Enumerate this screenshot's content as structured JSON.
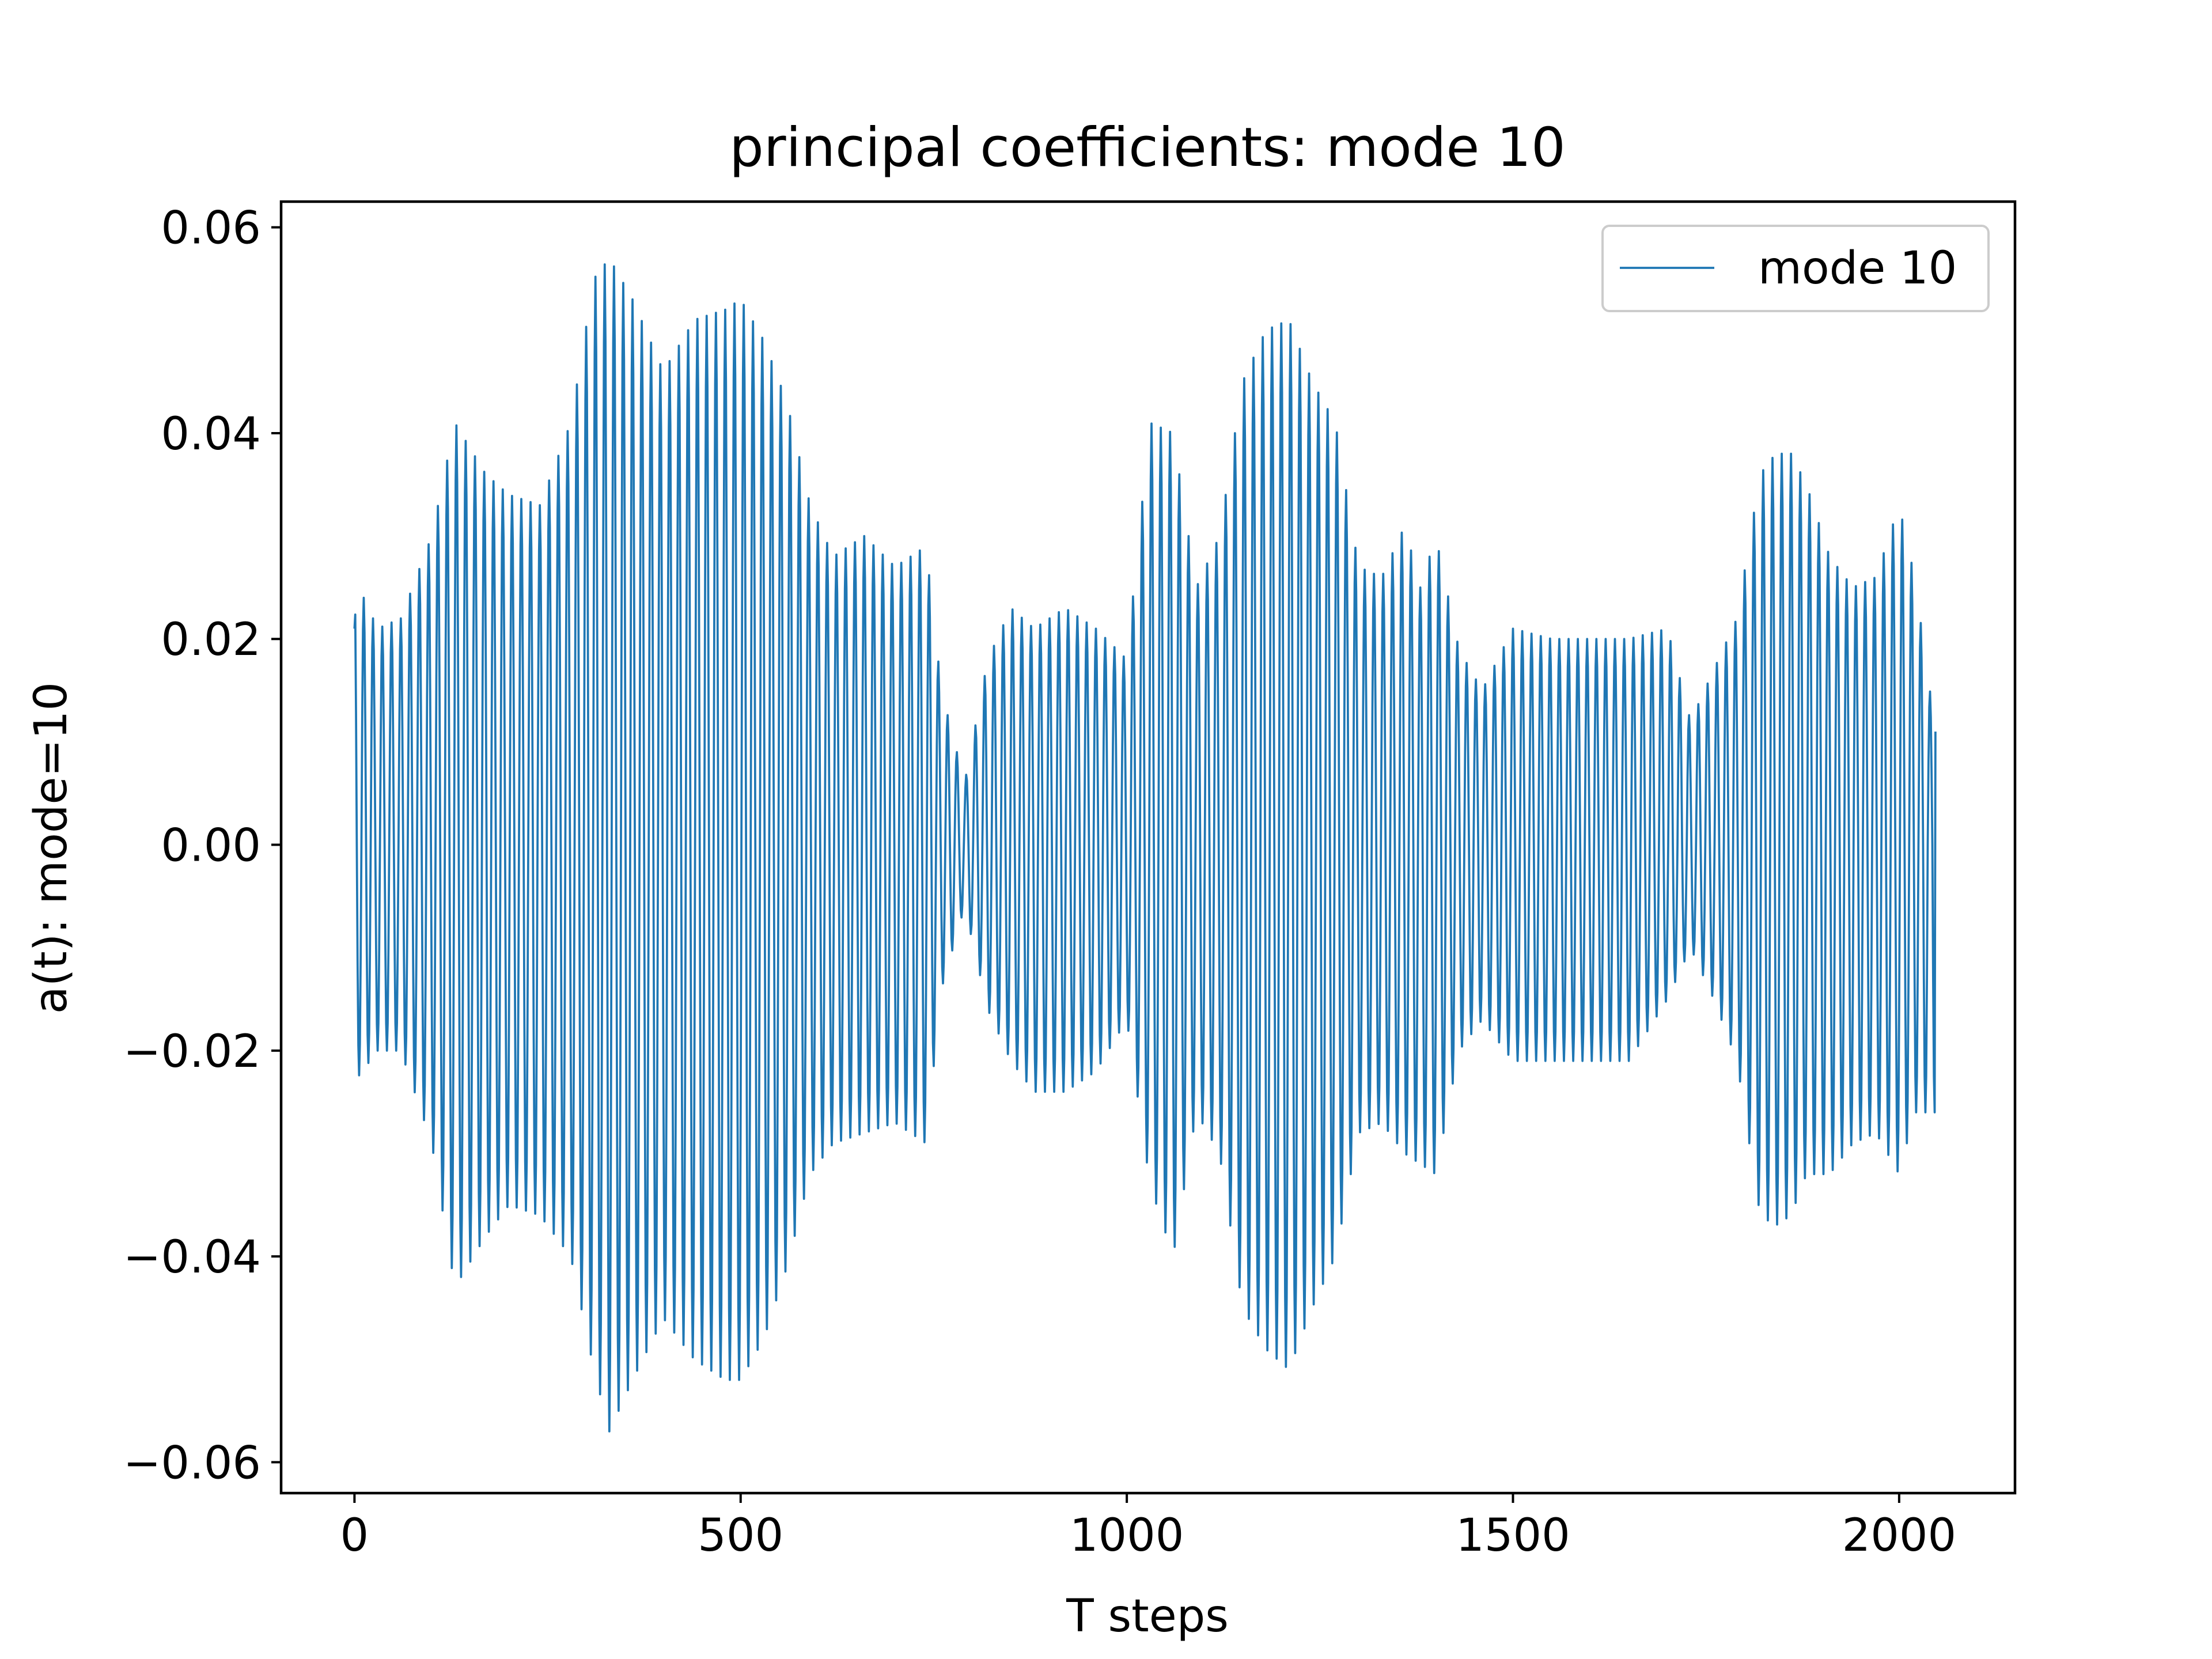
{
  "chart_data": {
    "type": "line",
    "title": "principal coefficients: mode 10",
    "xlabel": "T steps",
    "ylabel": "a(t): mode=10",
    "xlim": [
      -95,
      2150
    ],
    "ylim": [
      -0.063,
      0.0625
    ],
    "xticks": [
      0,
      500,
      1000,
      1500,
      2000
    ],
    "xtick_labels": [
      "0",
      "500",
      "1000",
      "1500",
      "2000"
    ],
    "yticks": [
      -0.06,
      -0.04,
      -0.02,
      0.0,
      0.02,
      0.04,
      0.06
    ],
    "ytick_labels": [
      "−0.06",
      "−0.04",
      "−0.02",
      "0.00",
      "0.02",
      "0.04",
      "0.06"
    ],
    "grid": false,
    "legend_position": "top-right",
    "series": [
      {
        "name": "mode 10",
        "color": "#1f77b4",
        "n_points": 2048,
        "oscillation_period_steps": 12,
        "start_value": 0.021,
        "end_value": 0.011,
        "envelope": {
          "x": [
            0,
            30,
            60,
            100,
            130,
            170,
            200,
            240,
            280,
            310,
            330,
            360,
            400,
            440,
            480,
            500,
            530,
            560,
            590,
            620,
            660,
            700,
            740,
            760,
            790,
            820,
            850,
            880,
            920,
            960,
            1000,
            1030,
            1060,
            1090,
            1120,
            1150,
            1180,
            1210,
            1240,
            1270,
            1300,
            1330,
            1360,
            1380,
            1400,
            1430,
            1460,
            1500,
            1550,
            1600,
            1650,
            1700,
            1730,
            1760,
            1790,
            1820,
            1840,
            1860,
            1880,
            1910,
            1940,
            1970,
            2000,
            2020,
            2047
          ],
          "upper": [
            0.026,
            0.021,
            0.022,
            0.03,
            0.041,
            0.036,
            0.034,
            0.033,
            0.041,
            0.055,
            0.057,
            0.053,
            0.046,
            0.051,
            0.052,
            0.053,
            0.049,
            0.043,
            0.033,
            0.028,
            0.03,
            0.027,
            0.029,
            0.015,
            0.006,
            0.018,
            0.023,
            0.021,
            0.023,
            0.021,
            0.018,
            0.041,
            0.04,
            0.025,
            0.03,
            0.045,
            0.05,
            0.051,
            0.045,
            0.041,
            0.027,
            0.026,
            0.031,
            0.025,
            0.03,
            0.019,
            0.015,
            0.021,
            0.02,
            0.02,
            0.02,
            0.021,
            0.012,
            0.017,
            0.022,
            0.036,
            0.038,
            0.038,
            0.035,
            0.028,
            0.025,
            0.026,
            0.033,
            0.026,
            0.011
          ],
          "lower": [
            -0.023,
            -0.02,
            -0.02,
            -0.029,
            -0.043,
            -0.038,
            -0.035,
            -0.036,
            -0.04,
            -0.051,
            -0.057,
            -0.052,
            -0.046,
            -0.05,
            -0.052,
            -0.052,
            -0.048,
            -0.041,
            -0.032,
            -0.029,
            -0.028,
            -0.027,
            -0.029,
            -0.014,
            -0.006,
            -0.016,
            -0.021,
            -0.024,
            -0.024,
            -0.022,
            -0.017,
            -0.033,
            -0.04,
            -0.026,
            -0.03,
            -0.045,
            -0.049,
            -0.051,
            -0.045,
            -0.04,
            -0.028,
            -0.027,
            -0.03,
            -0.031,
            -0.032,
            -0.02,
            -0.017,
            -0.021,
            -0.021,
            -0.021,
            -0.021,
            -0.015,
            -0.01,
            -0.015,
            -0.021,
            -0.036,
            -0.037,
            -0.036,
            -0.032,
            -0.032,
            -0.029,
            -0.028,
            -0.032,
            -0.026,
            -0.026
          ]
        }
      }
    ]
  }
}
